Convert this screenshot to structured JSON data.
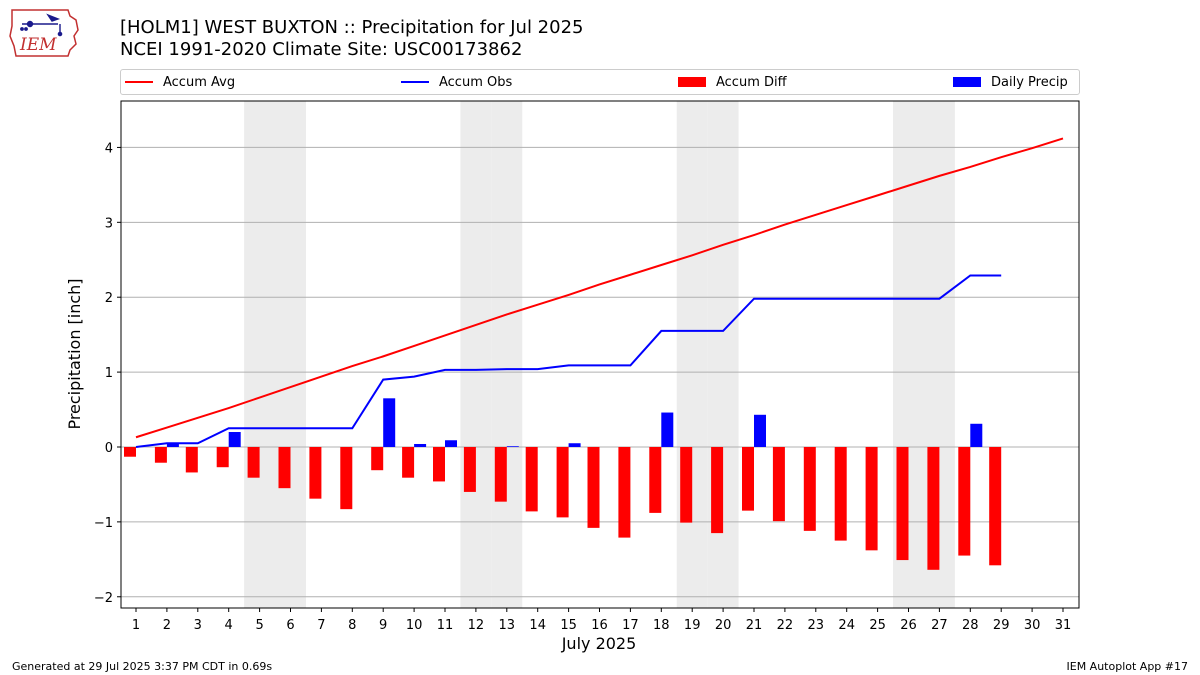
{
  "header": {
    "title_line1": "[HOLM1] WEST BUXTON :: Precipitation for Jul 2025",
    "title_line2": "NCEI 1991-2020 Climate Site: USC00173862",
    "logo_text": "IEM"
  },
  "footer": {
    "generated": "Generated at 29 Jul 2025 3:37 PM CDT in 0.69s",
    "app": "IEM Autoplot App #17"
  },
  "colors": {
    "accum_avg": "#ff0000",
    "accum_obs": "#0000ff",
    "accum_diff": "#ff0000",
    "daily_precip": "#0000ff",
    "weekend_shade": "#ececec",
    "grid": "#b0b0b0"
  },
  "chart_data": {
    "type": "bar",
    "xlabel": "July 2025",
    "ylabel": "Precipitation [inch]",
    "ylim": [
      -2.15,
      4.62
    ],
    "yticks": [
      -2,
      -1,
      0,
      1,
      2,
      3,
      4
    ],
    "ytick_labels": [
      "−2",
      "−1",
      "0",
      "1",
      "2",
      "3",
      "4"
    ],
    "days": [
      1,
      2,
      3,
      4,
      5,
      6,
      7,
      8,
      9,
      10,
      11,
      12,
      13,
      14,
      15,
      16,
      17,
      18,
      19,
      20,
      21,
      22,
      23,
      24,
      25,
      26,
      27,
      28,
      29,
      30,
      31
    ],
    "weekend_days": [
      5,
      6,
      12,
      13,
      19,
      20,
      26,
      27
    ],
    "legend": [
      "Accum Avg",
      "Accum Obs",
      "Accum Diff",
      "Daily Precip"
    ],
    "legend_placement": "top",
    "grid": "horizontal",
    "series": [
      {
        "name": "Accum Avg",
        "kind": "line",
        "values": [
          0.13,
          0.26,
          0.39,
          0.52,
          0.66,
          0.8,
          0.94,
          1.08,
          1.21,
          1.35,
          1.49,
          1.63,
          1.77,
          1.9,
          2.03,
          2.17,
          2.3,
          2.43,
          2.56,
          2.7,
          2.83,
          2.97,
          3.1,
          3.23,
          3.36,
          3.49,
          3.62,
          3.74,
          3.87,
          3.99,
          4.12
        ]
      },
      {
        "name": "Accum Obs",
        "kind": "line",
        "values": [
          0.0,
          0.05,
          0.05,
          0.25,
          0.25,
          0.25,
          0.25,
          0.25,
          0.9,
          0.94,
          1.03,
          1.03,
          1.04,
          1.04,
          1.09,
          1.09,
          1.09,
          1.55,
          1.55,
          1.55,
          1.98,
          1.98,
          1.98,
          1.98,
          1.98,
          1.98,
          1.98,
          2.29,
          2.29
        ]
      },
      {
        "name": "Accum Diff",
        "kind": "bar",
        "values": [
          -0.13,
          -0.21,
          -0.34,
          -0.27,
          -0.41,
          -0.55,
          -0.69,
          -0.83,
          -0.31,
          -0.41,
          -0.46,
          -0.6,
          -0.73,
          -0.86,
          -0.94,
          -1.08,
          -1.21,
          -0.88,
          -1.01,
          -1.15,
          -0.85,
          -0.99,
          -1.12,
          -1.25,
          -1.38,
          -1.51,
          -1.64,
          -1.45,
          -1.58
        ]
      },
      {
        "name": "Daily Precip",
        "kind": "bar",
        "values": [
          0.0,
          0.05,
          0.0,
          0.2,
          0.0,
          0.0,
          0.0,
          0.0,
          0.65,
          0.04,
          0.09,
          0.0,
          0.01,
          0.0,
          0.05,
          0.0,
          0.0,
          0.46,
          0.0,
          0.0,
          0.43,
          0.0,
          0.0,
          0.0,
          0.0,
          0.0,
          0.0,
          0.31,
          0.0
        ]
      }
    ]
  }
}
